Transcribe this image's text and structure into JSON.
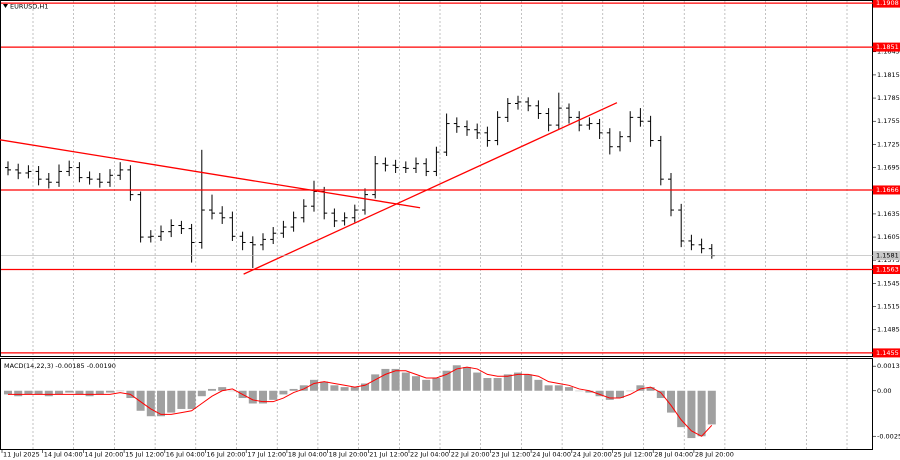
{
  "chart_data": [
    {
      "type": "candlestick",
      "title": "EURUSD,H1",
      "open": [
        1.1695,
        1.1692,
        1.1688,
        1.169,
        1.168,
        1.1676,
        1.169,
        1.1695,
        1.1682,
        1.168,
        1.1676,
        1.1685,
        1.1692,
        1.166,
        1.1605,
        1.1606,
        1.1612,
        1.162,
        1.1616,
        1.1598,
        1.164,
        1.1636,
        1.163,
        1.1606,
        1.1598,
        1.1595,
        1.1602,
        1.161,
        1.1618,
        1.163,
        1.1645,
        1.1664,
        1.1636,
        1.1626,
        1.163,
        1.164,
        1.166,
        1.17,
        1.1698,
        1.1695,
        1.1694,
        1.17,
        1.169,
        1.1715,
        1.1752,
        1.1748,
        1.1744,
        1.174,
        1.173,
        1.176,
        1.1778,
        1.178,
        1.1775,
        1.1765,
        1.175,
        1.1772,
        1.176,
        1.175,
        1.1752,
        1.174,
        1.1722,
        1.1735,
        1.176,
        1.1755,
        1.173,
        1.168,
        1.164,
        1.16,
        1.1595,
        1.159
      ],
      "high": [
        1.1703,
        1.17,
        1.1698,
        1.1697,
        1.1688,
        1.1699,
        1.1704,
        1.1702,
        1.169,
        1.1688,
        1.1693,
        1.1702,
        1.1698,
        1.1664,
        1.1614,
        1.162,
        1.1628,
        1.1626,
        1.1622,
        1.1718,
        1.166,
        1.1645,
        1.1638,
        1.1612,
        1.1606,
        1.161,
        1.1618,
        1.1626,
        1.1638,
        1.1654,
        1.1678,
        1.167,
        1.1642,
        1.1637,
        1.1647,
        1.1668,
        1.171,
        1.1708,
        1.1705,
        1.1703,
        1.1708,
        1.1707,
        1.1722,
        1.1765,
        1.176,
        1.1756,
        1.1752,
        1.1748,
        1.1768,
        1.1785,
        1.1788,
        1.1786,
        1.1782,
        1.1772,
        1.1792,
        1.1778,
        1.1768,
        1.176,
        1.1758,
        1.1746,
        1.1742,
        1.1768,
        1.1772,
        1.1762,
        1.1736,
        1.1688,
        1.1648,
        1.1608,
        1.1603,
        1.1596
      ],
      "low": [
        1.1685,
        1.168,
        1.1681,
        1.1672,
        1.1668,
        1.167,
        1.1684,
        1.1676,
        1.1673,
        1.1669,
        1.167,
        1.1679,
        1.1652,
        1.1598,
        1.1598,
        1.16,
        1.1605,
        1.1609,
        1.1572,
        1.159,
        1.1628,
        1.1622,
        1.16,
        1.1588,
        1.1565,
        1.1588,
        1.1596,
        1.1604,
        1.1612,
        1.1624,
        1.1638,
        1.1628,
        1.1618,
        1.162,
        1.1624,
        1.1634,
        1.1655,
        1.169,
        1.1688,
        1.1688,
        1.1688,
        1.1684,
        1.1684,
        1.171,
        1.174,
        1.1736,
        1.1732,
        1.1722,
        1.1724,
        1.1754,
        1.177,
        1.1768,
        1.1758,
        1.1742,
        1.1744,
        1.1752,
        1.1742,
        1.1744,
        1.1732,
        1.1712,
        1.1716,
        1.1728,
        1.1748,
        1.1722,
        1.1672,
        1.1632,
        1.1592,
        1.1588,
        1.1584,
        1.1577
      ],
      "close": [
        1.1692,
        1.1688,
        1.169,
        1.168,
        1.1676,
        1.169,
        1.1695,
        1.1682,
        1.168,
        1.1676,
        1.1685,
        1.1692,
        1.166,
        1.1605,
        1.1606,
        1.1612,
        1.162,
        1.1616,
        1.1598,
        1.164,
        1.1636,
        1.163,
        1.1606,
        1.1598,
        1.1595,
        1.1602,
        1.161,
        1.1618,
        1.163,
        1.1645,
        1.1664,
        1.1636,
        1.1626,
        1.163,
        1.164,
        1.166,
        1.17,
        1.1698,
        1.1695,
        1.1694,
        1.17,
        1.169,
        1.1715,
        1.1752,
        1.1748,
        1.1744,
        1.174,
        1.173,
        1.176,
        1.1778,
        1.178,
        1.1775,
        1.1765,
        1.175,
        1.1772,
        1.176,
        1.175,
        1.1752,
        1.174,
        1.1722,
        1.1735,
        1.176,
        1.1755,
        1.173,
        1.168,
        1.164,
        1.16,
        1.1595,
        1.159,
        1.1581
      ],
      "color": "#000000",
      "ylim": [
        1.1451,
        1.1912
      ],
      "yticks": [
        1.1845,
        1.1815,
        1.1785,
        1.1755,
        1.1725,
        1.1695,
        1.1635,
        1.1605,
        1.1575,
        1.1545,
        1.1515,
        1.1485
      ],
      "levels": [
        1.1908,
        1.1851,
        1.1666,
        1.1563,
        1.1455
      ],
      "level_color": "#ff0000",
      "bid": 1.1581,
      "trendlines": [
        {
          "x": [
            -0.8,
            40.4
          ],
          "y": [
            1.1731,
            1.1643
          ]
        },
        {
          "x": [
            23.1,
            59.7
          ],
          "y": [
            1.1557,
            1.1779
          ]
        }
      ],
      "time_labels": [
        "11 Jul 2025",
        "14 Jul 04:00",
        "14 Jul 20:00",
        "15 Jul 12:00",
        "16 Jul 04:00",
        "16 Jul 20:00",
        "17 Jul 12:00",
        "18 Jul 04:00",
        "18 Jul 20:00",
        "21 Jul 12:00",
        "22 Jul 04:00",
        "22 Jul 20:00",
        "23 Jul 12:00",
        "24 Jul 04:00",
        "24 Jul 20:00",
        "25 Jul 12:00",
        "28 Jul 04:00",
        "28 Jul 20:00"
      ],
      "grid": true
    },
    {
      "type": "macd",
      "title": "MACD(14,22,3) -0.00185 -0.00190",
      "ylim": [
        -0.0032,
        0.0018
      ],
      "yticks": [
        0.00135,
        {
          "value": 0,
          "label": "0.00"
        },
        -0.0025
      ],
      "series": [
        {
          "color": "#a0a0a0",
          "values": [
            -0.0002,
            -0.0003,
            -0.0002,
            -0.0002,
            -0.0003,
            -0.0002,
            -0.0001,
            -0.0002,
            -0.0003,
            -0.0002,
            -0.0001,
            0.0,
            -0.0004,
            -0.0011,
            -0.0014,
            -0.0014,
            -0.0012,
            -0.001,
            -0.001,
            -0.0003,
            0.0001,
            0.0002,
            0.0,
            -0.0004,
            -0.0007,
            -0.0007,
            -0.0005,
            -0.0002,
            0.0001,
            0.0003,
            0.0006,
            0.0005,
            0.0003,
            0.0002,
            0.0002,
            0.0004,
            0.0009,
            0.0012,
            0.0012,
            0.001,
            0.0008,
            0.0006,
            0.0007,
            0.0011,
            0.0014,
            0.0013,
            0.001,
            0.0007,
            0.0007,
            0.0009,
            0.001,
            0.0009,
            0.0006,
            0.0003,
            0.0003,
            0.0002,
            0.0,
            -0.0001,
            -0.0003,
            -0.0005,
            -0.0004,
            0.0,
            0.0003,
            0.0002,
            -0.0004,
            -0.0012,
            -0.002,
            -0.0026,
            -0.0025,
            -0.00185
          ]
        },
        {
          "color": "#ff0000",
          "values": [
            -0.0002,
            -0.0002,
            -0.0002,
            -0.0002,
            -0.0002,
            -0.0002,
            -0.0002,
            -0.0002,
            -0.0002,
            -0.0002,
            -0.0002,
            -0.0001,
            -0.0002,
            -0.0006,
            -0.001,
            -0.0013,
            -0.0013,
            -0.0012,
            -0.0011,
            -0.0007,
            -0.0003,
            0.0,
            0.0001,
            -0.0002,
            -0.0005,
            -0.0006,
            -0.0006,
            -0.0004,
            -0.0001,
            0.0001,
            0.0004,
            0.0005,
            0.0004,
            0.0003,
            0.0002,
            0.0003,
            0.0006,
            0.0009,
            0.0011,
            0.0011,
            0.0009,
            0.0007,
            0.0007,
            0.0009,
            0.0012,
            0.0013,
            0.0012,
            0.0009,
            0.0008,
            0.0008,
            0.0009,
            0.0009,
            0.0008,
            0.0005,
            0.0004,
            0.0003,
            0.0001,
            0.0,
            -0.0002,
            -0.0004,
            -0.0004,
            -0.0002,
            0.0001,
            0.0002,
            -0.0001,
            -0.0008,
            -0.0016,
            -0.0022,
            -0.0025,
            -0.0019
          ]
        }
      ]
    }
  ]
}
